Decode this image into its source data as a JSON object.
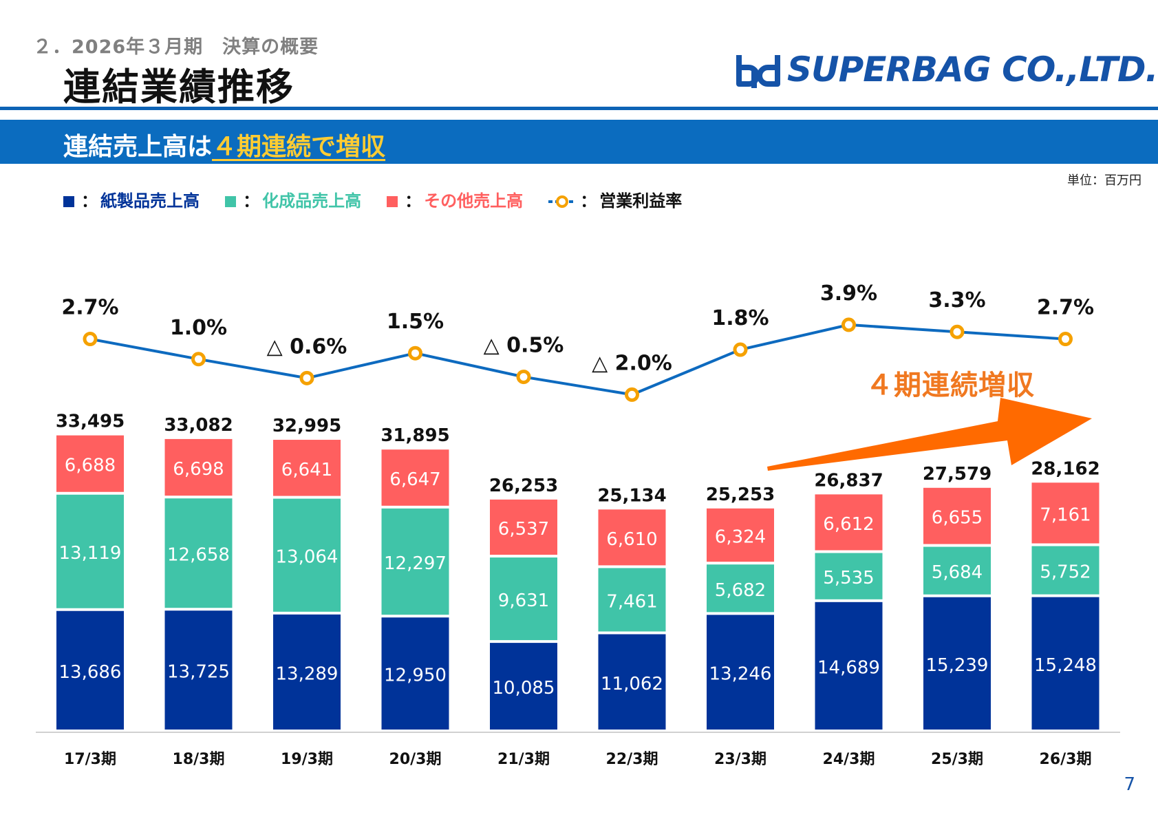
{
  "header": {
    "section": "２．2026年３月期　決算の概要",
    "title": "連結業績推移",
    "logo": "SUPERBAG CO.,LTD."
  },
  "banner": {
    "text_prefix": "連結売上高は",
    "text_highlight": "４期連続で増収"
  },
  "unit": "単位：百万円",
  "legend": [
    {
      "label": "紙製品売上高",
      "color": "#003399",
      "kind": "square"
    },
    {
      "label": "化成品売上高",
      "color": "#40c4a8",
      "kind": "square"
    },
    {
      "label": "その他売上高",
      "color": "#ff5f5f",
      "kind": "square"
    },
    {
      "label": "営業利益率",
      "color": "#111111",
      "kind": "line"
    }
  ],
  "legend_colon": "：",
  "annotation": "４期連続増収",
  "page_number": "7",
  "colors": {
    "paper": "#003399",
    "chemical": "#40c4a8",
    "other": "#ff5f5f",
    "line": "#0d6abf",
    "marker": "#f5a100",
    "arrow": "#ff6a00",
    "brand": "#0b6cbf"
  },
  "chart_data": {
    "type": "bar",
    "stacked": true,
    "categories": [
      "17/3期",
      "18/3期",
      "19/3期",
      "20/3期",
      "21/3期",
      "22/3期",
      "23/3期",
      "24/3期",
      "25/3期",
      "26/3期"
    ],
    "series": [
      {
        "name": "紙製品売上高",
        "values": [
          13686,
          13725,
          13289,
          12950,
          10085,
          11062,
          13246,
          14689,
          15239,
          15248
        ],
        "labels": [
          "13,686",
          "13,725",
          "13,289",
          "12,950",
          "10,085",
          "11,062",
          "13,246",
          "14,689",
          "15,239",
          "15,248"
        ]
      },
      {
        "name": "化成品売上高",
        "values": [
          13119,
          12658,
          13064,
          12297,
          9631,
          7461,
          5682,
          5535,
          5684,
          5752
        ],
        "labels": [
          "13,119",
          "12,658",
          "13,064",
          "12,297",
          "9,631",
          "7,461",
          "5,682",
          "5,535",
          "5,684",
          "5,752"
        ]
      },
      {
        "name": "その他売上高",
        "values": [
          6688,
          6698,
          6641,
          6647,
          6537,
          6610,
          6324,
          6612,
          6655,
          7161
        ],
        "labels": [
          "6,688",
          "6,698",
          "6,641",
          "6,647",
          "6,537",
          "6,610",
          "6,324",
          "6,612",
          "6,655",
          "7,161"
        ]
      }
    ],
    "totals": [
      33495,
      33082,
      32995,
      31895,
      26253,
      25134,
      25253,
      26837,
      27579,
      28162
    ],
    "total_labels": [
      "33,495",
      "33,082",
      "32,995",
      "31,895",
      "26,253",
      "25,134",
      "25,253",
      "26,837",
      "27,579",
      "28,162"
    ],
    "line": {
      "name": "営業利益率",
      "values": [
        2.7,
        1.0,
        -0.6,
        1.5,
        -0.5,
        -2.0,
        1.8,
        3.9,
        3.3,
        2.7
      ],
      "labels": [
        "2.7%",
        "1.0%",
        "△ 0.6%",
        "1.5%",
        "△ 0.5%",
        "△ 2.0%",
        "1.8%",
        "3.9%",
        "3.3%",
        "2.7%"
      ]
    },
    "unit": "百万円",
    "grid": false
  }
}
